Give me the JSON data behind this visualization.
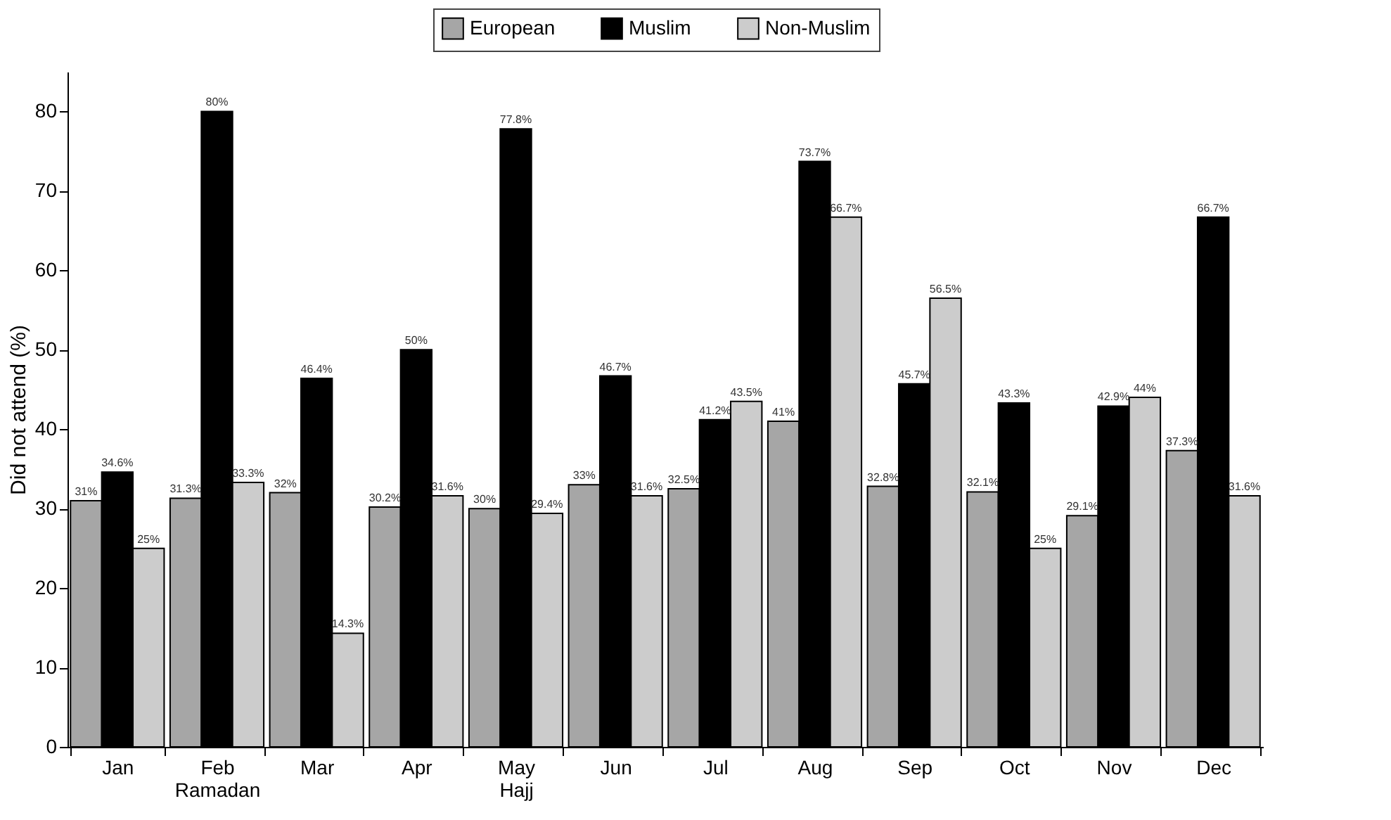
{
  "chart_data": {
    "type": "bar",
    "ylabel": "Did not attend (%)",
    "categories": [
      "Jan",
      "Feb\nRamadan",
      "Mar",
      "Apr",
      "May\nHajj",
      "Jun",
      "Jul",
      "Aug",
      "Sep",
      "Oct",
      "Nov",
      "Dec"
    ],
    "series": [
      {
        "name": "European",
        "color": "#a6a6a6",
        "values": [
          31,
          31.3,
          32,
          30.2,
          30,
          33,
          32.5,
          41,
          32.8,
          32.1,
          29.1,
          37.3
        ],
        "value_labels": [
          "31%",
          "31.3%",
          "32%",
          "30.2%",
          "30%",
          "33%",
          "32.5%",
          "41%",
          "32.8%",
          "32.1%",
          "29.1%",
          "37.3%"
        ]
      },
      {
        "name": "Muslim",
        "color": "#000000",
        "values": [
          34.6,
          80,
          46.4,
          50,
          77.8,
          46.7,
          41.2,
          73.7,
          45.7,
          43.3,
          42.9,
          66.7
        ],
        "value_labels": [
          "34.6%",
          "80%",
          "46.4%",
          "50%",
          "77.8%",
          "46.7%",
          "41.2%",
          "73.7%",
          "45.7%",
          "43.3%",
          "42.9%",
          "66.7%"
        ]
      },
      {
        "name": "Non-Muslim",
        "color": "#cccccc",
        "values": [
          25,
          33.3,
          14.3,
          31.6,
          29.4,
          31.6,
          43.5,
          66.7,
          56.5,
          25,
          44,
          31.6
        ],
        "value_labels": [
          "25%",
          "33.3%",
          "14.3%",
          "31.6%",
          "29.4%",
          "31.6%",
          "43.5%",
          "66.7%",
          "56.5%",
          "25%",
          "44%",
          "31.6%"
        ]
      }
    ],
    "ylim": [
      0,
      85
    ],
    "yticks": [
      0,
      10,
      20,
      30,
      40,
      50,
      60,
      70,
      80
    ],
    "grid": false,
    "legend": "top"
  }
}
